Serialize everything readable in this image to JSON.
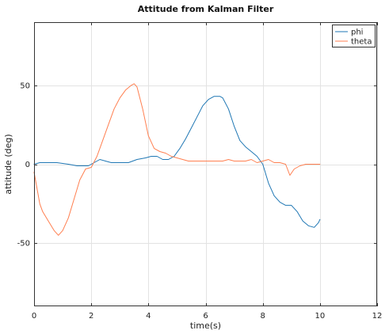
{
  "chart_data": {
    "type": "line",
    "title": "Attitude from Kalman Filter",
    "xlabel": "time(s)",
    "ylabel": "attitude (deg)",
    "xlim": [
      0,
      12
    ],
    "ylim": [
      -90,
      90
    ],
    "xticks": [
      0,
      2,
      4,
      6,
      8,
      10,
      12
    ],
    "yticks": [
      -50,
      0,
      50
    ],
    "grid": true,
    "legend_position": "top-right",
    "series": [
      {
        "name": "phi",
        "color": "#1f77b4",
        "x": [
          0,
          0.2,
          0.5,
          0.8,
          1.0,
          1.2,
          1.5,
          1.7,
          1.9,
          2.1,
          2.3,
          2.5,
          2.7,
          3.0,
          3.3,
          3.6,
          3.9,
          4.1,
          4.3,
          4.5,
          4.7,
          4.9,
          5.1,
          5.3,
          5.5,
          5.7,
          5.9,
          6.1,
          6.3,
          6.5,
          6.6,
          6.8,
          7.0,
          7.2,
          7.4,
          7.6,
          7.8,
          8.0,
          8.2,
          8.4,
          8.6,
          8.8,
          9.0,
          9.2,
          9.4,
          9.6,
          9.8,
          9.95,
          10.0
        ],
        "y": [
          0,
          1,
          1,
          1,
          0.5,
          0,
          -1,
          -1,
          -1,
          1,
          3,
          2,
          1,
          1,
          1,
          3,
          4,
          5,
          5,
          3,
          3,
          5,
          10,
          16,
          23,
          30,
          37,
          41,
          43,
          43,
          42,
          35,
          24,
          15,
          11,
          8,
          5,
          0,
          -12,
          -20,
          -24,
          -26,
          -26,
          -30,
          -36,
          -39,
          -40,
          -37,
          -35
        ]
      },
      {
        "name": "theta",
        "color": "#ff7f50",
        "x": [
          0,
          0.1,
          0.2,
          0.3,
          0.5,
          0.7,
          0.85,
          1.0,
          1.2,
          1.4,
          1.6,
          1.8,
          2.0,
          2.2,
          2.4,
          2.6,
          2.8,
          3.0,
          3.2,
          3.4,
          3.5,
          3.6,
          3.8,
          4.0,
          4.2,
          4.4,
          4.6,
          4.8,
          5.0,
          5.2,
          5.4,
          5.6,
          5.8,
          6.0,
          6.2,
          6.4,
          6.6,
          6.8,
          7.0,
          7.2,
          7.4,
          7.6,
          7.8,
          8.0,
          8.2,
          8.4,
          8.6,
          8.8,
          8.95,
          9.1,
          9.3,
          9.5,
          9.7,
          10.0
        ],
        "y": [
          -5,
          -15,
          -25,
          -30,
          -36,
          -42,
          -45,
          -42,
          -34,
          -22,
          -10,
          -3,
          -2,
          5,
          15,
          25,
          35,
          42,
          47,
          50,
          51,
          49,
          35,
          18,
          10,
          8,
          7,
          5,
          4,
          3,
          2,
          2,
          2,
          2,
          2,
          2,
          2,
          3,
          2,
          2,
          2,
          3,
          1,
          2,
          3,
          1,
          1,
          0,
          -7,
          -3,
          -1,
          0,
          0,
          0
        ]
      }
    ]
  }
}
